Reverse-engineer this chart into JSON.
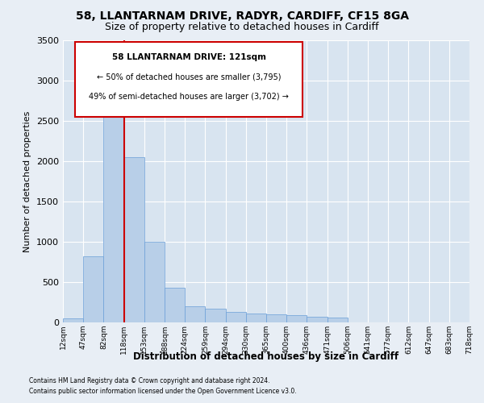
{
  "title": "58, LLANTARNAM DRIVE, RADYR, CARDIFF, CF15 8GA",
  "subtitle": "Size of property relative to detached houses in Cardiff",
  "xlabel": "Distribution of detached houses by size in Cardiff",
  "ylabel": "Number of detached properties",
  "footer_line1": "Contains HM Land Registry data © Crown copyright and database right 2024.",
  "footer_line2": "Contains public sector information licensed under the Open Government Licence v3.0.",
  "annotation_line1": "58 LLANTARNAM DRIVE: 121sqm",
  "annotation_line2": "← 50% of detached houses are smaller (3,795)",
  "annotation_line3": "49% of semi-detached houses are larger (3,702) →",
  "bar_color": "#b8cfe8",
  "bar_edge_color": "#6a9fd8",
  "marker_color": "#cc0000",
  "annotation_box_edge": "#cc0000",
  "background_color": "#e8eef5",
  "plot_bg_color": "#d8e4f0",
  "grid_color": "#ffffff",
  "ylim": [
    0,
    3500
  ],
  "yticks": [
    0,
    500,
    1000,
    1500,
    2000,
    2500,
    3000,
    3500
  ],
  "bins": [
    "12sqm",
    "47sqm",
    "82sqm",
    "118sqm",
    "153sqm",
    "188sqm",
    "224sqm",
    "259sqm",
    "294sqm",
    "330sqm",
    "365sqm",
    "400sqm",
    "436sqm",
    "471sqm",
    "506sqm",
    "541sqm",
    "577sqm",
    "612sqm",
    "647sqm",
    "683sqm",
    "718sqm"
  ],
  "bar_heights": [
    50,
    820,
    2700,
    2050,
    1000,
    430,
    200,
    170,
    135,
    110,
    100,
    90,
    70,
    60,
    0,
    0,
    0,
    0,
    0,
    0
  ],
  "marker_bin_index": 3
}
